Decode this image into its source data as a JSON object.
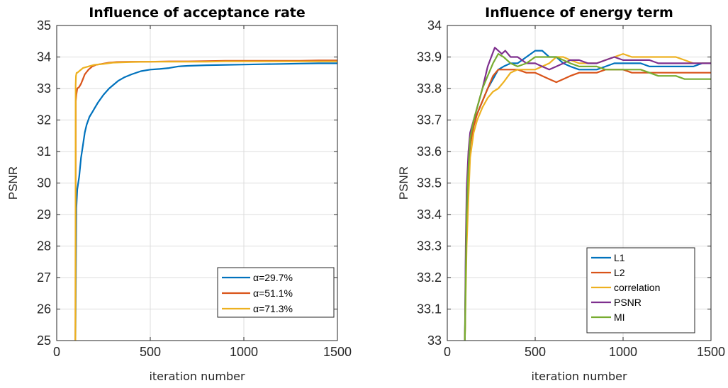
{
  "chart_data": [
    {
      "type": "line",
      "title": "Influence of acceptance rate",
      "xlabel": "iteration number",
      "ylabel": "PSNR",
      "xlim": [
        0,
        1500
      ],
      "ylim": [
        25,
        35
      ],
      "xticks": [
        0,
        500,
        1000,
        1500
      ],
      "yticks": [
        25,
        26,
        27,
        28,
        29,
        30,
        31,
        32,
        33,
        34,
        35
      ],
      "grid": true,
      "legend_position": "bottom-right",
      "series": [
        {
          "name": "α=29.7%",
          "color": "#0072BD",
          "x": [
            100,
            105,
            110,
            120,
            130,
            140,
            150,
            160,
            175,
            190,
            200,
            220,
            250,
            280,
            300,
            330,
            360,
            400,
            450,
            500,
            550,
            600,
            650,
            700,
            800,
            900,
            1000,
            1100,
            1200,
            1300,
            1400,
            1500
          ],
          "y": [
            25.0,
            29.2,
            29.8,
            30.2,
            30.8,
            31.2,
            31.6,
            31.85,
            32.1,
            32.25,
            32.35,
            32.55,
            32.8,
            33.0,
            33.1,
            33.25,
            33.35,
            33.45,
            33.55,
            33.6,
            33.62,
            33.65,
            33.7,
            33.72,
            33.74,
            33.75,
            33.76,
            33.77,
            33.78,
            33.79,
            33.8,
            33.8
          ]
        },
        {
          "name": "α=51.1%",
          "color": "#D95319",
          "x": [
            100,
            102,
            105,
            110,
            120,
            130,
            140,
            150,
            170,
            190,
            210,
            240,
            280,
            320,
            400,
            500,
            600,
            700,
            800,
            900,
            1000,
            1100,
            1200,
            1300,
            1400,
            1500
          ],
          "y": [
            25.0,
            32.6,
            32.8,
            33.0,
            33.05,
            33.15,
            33.3,
            33.45,
            33.6,
            33.7,
            33.75,
            33.78,
            33.82,
            33.84,
            33.85,
            33.85,
            33.86,
            33.86,
            33.87,
            33.88,
            33.88,
            33.88,
            33.88,
            33.88,
            33.89,
            33.89
          ]
        },
        {
          "name": "α=71.3%",
          "color": "#EDB120",
          "x": [
            100,
            101,
            103,
            106,
            110,
            120,
            140,
            170,
            200,
            250,
            300,
            400,
            500,
            600,
            700,
            800,
            900,
            1000,
            1100,
            1200,
            1300,
            1400,
            1500
          ],
          "y": [
            25.0,
            33.1,
            33.4,
            33.5,
            33.5,
            33.55,
            33.65,
            33.7,
            33.75,
            33.78,
            33.82,
            33.84,
            33.85,
            33.85,
            33.85,
            33.85,
            33.86,
            33.86,
            33.86,
            33.86,
            33.86,
            33.86,
            33.86
          ]
        }
      ]
    },
    {
      "type": "line",
      "title": "Influence of energy term",
      "xlabel": "iteration number",
      "ylabel": "PSNR",
      "xlim": [
        0,
        1500
      ],
      "ylim": [
        33,
        34
      ],
      "xticks": [
        0,
        500,
        1000,
        1500
      ],
      "yticks": [
        33,
        33.1,
        33.2,
        33.3,
        33.4,
        33.5,
        33.6,
        33.7,
        33.8,
        33.9,
        34
      ],
      "grid": true,
      "legend_position": "bottom-right",
      "series": [
        {
          "name": "L1",
          "color": "#0072BD",
          "x": [
            100,
            105,
            110,
            120,
            130,
            150,
            170,
            200,
            230,
            260,
            290,
            320,
            360,
            400,
            450,
            500,
            540,
            580,
            620,
            660,
            700,
            750,
            800,
            850,
            900,
            950,
            1000,
            1050,
            1100,
            1150,
            1200,
            1250,
            1300,
            1350,
            1400,
            1450,
            1500
          ],
          "y": [
            33.0,
            33.25,
            33.45,
            33.58,
            33.65,
            33.7,
            33.72,
            33.76,
            33.8,
            33.83,
            33.86,
            33.87,
            33.88,
            33.88,
            33.9,
            33.92,
            33.92,
            33.9,
            33.9,
            33.88,
            33.87,
            33.86,
            33.86,
            33.86,
            33.87,
            33.88,
            33.88,
            33.88,
            33.88,
            33.87,
            33.87,
            33.87,
            33.87,
            33.87,
            33.87,
            33.88,
            33.88
          ]
        },
        {
          "name": "L2",
          "color": "#D95319",
          "x": [
            100,
            105,
            110,
            120,
            130,
            150,
            170,
            200,
            230,
            260,
            290,
            320,
            360,
            400,
            450,
            500,
            540,
            580,
            620,
            660,
            700,
            750,
            800,
            850,
            900,
            950,
            1000,
            1050,
            1100,
            1150,
            1200,
            1250,
            1300,
            1350,
            1400,
            1450,
            1500
          ],
          "y": [
            33.0,
            33.2,
            33.35,
            33.5,
            33.62,
            33.68,
            33.72,
            33.76,
            33.8,
            33.84,
            33.86,
            33.86,
            33.86,
            33.86,
            33.85,
            33.85,
            33.84,
            33.83,
            33.82,
            33.83,
            33.84,
            33.85,
            33.85,
            33.85,
            33.86,
            33.86,
            33.86,
            33.85,
            33.85,
            33.85,
            33.85,
            33.85,
            33.85,
            33.85,
            33.85,
            33.85,
            33.85
          ]
        },
        {
          "name": "correlation",
          "color": "#EDB120",
          "x": [
            100,
            105,
            110,
            120,
            130,
            150,
            170,
            200,
            230,
            260,
            290,
            320,
            360,
            400,
            450,
            500,
            540,
            580,
            620,
            660,
            700,
            750,
            800,
            850,
            900,
            950,
            1000,
            1050,
            1100,
            1150,
            1200,
            1250,
            1300,
            1350,
            1400,
            1450,
            1500
          ],
          "y": [
            33.0,
            33.15,
            33.3,
            33.45,
            33.58,
            33.66,
            33.7,
            33.74,
            33.77,
            33.79,
            33.8,
            33.82,
            33.85,
            33.86,
            33.86,
            33.86,
            33.87,
            33.88,
            33.9,
            33.9,
            33.89,
            33.88,
            33.88,
            33.88,
            33.89,
            33.9,
            33.91,
            33.9,
            33.9,
            33.9,
            33.9,
            33.9,
            33.9,
            33.89,
            33.88,
            33.88,
            33.88
          ]
        },
        {
          "name": "PSNR",
          "color": "#7E2F8E",
          "x": [
            100,
            105,
            110,
            120,
            130,
            150,
            170,
            200,
            230,
            250,
            270,
            290,
            310,
            330,
            360,
            400,
            450,
            500,
            540,
            580,
            620,
            660,
            700,
            750,
            800,
            850,
            900,
            950,
            1000,
            1050,
            1100,
            1150,
            1200,
            1250,
            1300,
            1350,
            1400,
            1450,
            1500
          ],
          "y": [
            33.0,
            33.3,
            33.48,
            33.6,
            33.66,
            33.7,
            33.74,
            33.8,
            33.87,
            33.9,
            33.93,
            33.92,
            33.91,
            33.92,
            33.9,
            33.9,
            33.88,
            33.88,
            33.87,
            33.86,
            33.87,
            33.88,
            33.89,
            33.89,
            33.88,
            33.88,
            33.89,
            33.9,
            33.89,
            33.89,
            33.89,
            33.89,
            33.88,
            33.88,
            33.88,
            33.88,
            33.88,
            33.88,
            33.88
          ]
        },
        {
          "name": "MI",
          "color": "#77AC30",
          "x": [
            100,
            105,
            110,
            120,
            130,
            150,
            170,
            200,
            230,
            260,
            290,
            320,
            360,
            400,
            450,
            500,
            540,
            580,
            620,
            660,
            700,
            750,
            800,
            850,
            900,
            950,
            1000,
            1050,
            1100,
            1150,
            1200,
            1250,
            1300,
            1350,
            1400,
            1450,
            1500
          ],
          "y": [
            33.0,
            33.2,
            33.4,
            33.55,
            33.64,
            33.7,
            33.74,
            33.8,
            33.84,
            33.88,
            33.91,
            33.9,
            33.88,
            33.87,
            33.88,
            33.9,
            33.9,
            33.9,
            33.9,
            33.89,
            33.88,
            33.87,
            33.87,
            33.87,
            33.86,
            33.86,
            33.86,
            33.86,
            33.86,
            33.85,
            33.84,
            33.84,
            33.84,
            33.83,
            33.83,
            33.83,
            33.83
          ]
        }
      ]
    }
  ]
}
